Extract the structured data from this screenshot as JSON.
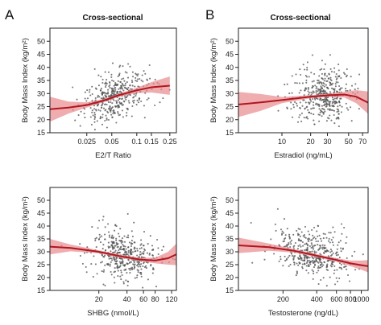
{
  "figure": {
    "panel_a_letter": "A",
    "panel_b_letter": "B",
    "title_a": "Cross-sectional",
    "title_b": "Cross-sectional"
  },
  "colors": {
    "points": "#4d4d4d",
    "fit_line": "#b0161e",
    "ci_band": "#e88a8f",
    "axis": "#222222"
  },
  "chart_data": [
    {
      "id": "e2t",
      "type": "scatter",
      "title": "Cross-sectional",
      "xlabel": "E2/T Ratio",
      "ylabel": "Body Mass Index (kg/m²)",
      "xscale": "log",
      "xlim": [
        0.009,
        0.3
      ],
      "ylim": [
        15,
        55
      ],
      "xticks": [
        0.025,
        0.05,
        0.1,
        0.15,
        0.25
      ],
      "xtick_labels": [
        "0.025",
        "0.05",
        "0.1",
        "0.15",
        "0.25"
      ],
      "yticks": [
        15,
        20,
        25,
        30,
        35,
        40,
        45,
        50
      ],
      "cloud": {
        "x_center": 0.055,
        "x_spread_log10": 0.2,
        "y_spread": 4.2,
        "n": 420
      },
      "fit": {
        "x": [
          0.009,
          0.015,
          0.025,
          0.04,
          0.06,
          0.1,
          0.15,
          0.25
        ],
        "y": [
          24.0,
          24.6,
          25.6,
          27.3,
          29.3,
          31.2,
          32.4,
          33.0
        ],
        "lower": [
          19.2,
          22.3,
          24.6,
          26.7,
          28.7,
          30.2,
          30.4,
          29.5
        ],
        "upper": [
          28.8,
          26.9,
          26.6,
          27.9,
          29.9,
          32.2,
          34.4,
          36.5
        ]
      }
    },
    {
      "id": "estradiol",
      "type": "scatter",
      "title": "Cross-sectional",
      "xlabel": "Estradiol (ng/mL)",
      "ylabel": "Body Mass Index (kg/m²)",
      "xscale": "log",
      "xlim": [
        3.5,
        80
      ],
      "ylim": [
        15,
        55
      ],
      "xticks": [
        10,
        20,
        30,
        50,
        70
      ],
      "xtick_labels": [
        "10",
        "20",
        "30",
        "50",
        "70"
      ],
      "yticks": [
        15,
        20,
        25,
        30,
        35,
        40,
        45,
        50
      ],
      "cloud": {
        "x_center": 26,
        "x_spread_log10": 0.16,
        "y_spread": 4.8,
        "n": 420
      },
      "fit": {
        "x": [
          3.5,
          6,
          10,
          20,
          30,
          45,
          60,
          80
        ],
        "y": [
          25.8,
          26.6,
          27.5,
          28.8,
          29.3,
          29.6,
          28.8,
          26.5
        ],
        "lower": [
          21.0,
          23.4,
          26.3,
          28.2,
          28.7,
          28.5,
          26.3,
          22.2
        ],
        "upper": [
          30.6,
          29.8,
          28.7,
          29.4,
          29.9,
          30.7,
          31.3,
          30.8
        ]
      }
    },
    {
      "id": "shbg",
      "type": "scatter",
      "title": "",
      "xlabel": "SHBG (nmol/L)",
      "ylabel": "Body Mass Index (kg/m²)",
      "xscale": "log",
      "xlim": [
        6,
        135
      ],
      "ylim": [
        15,
        55
      ],
      "xticks": [
        20,
        40,
        60,
        80,
        120
      ],
      "xtick_labels": [
        "20",
        "40",
        "60",
        "80",
        "120"
      ],
      "yticks": [
        15,
        20,
        25,
        30,
        35,
        40,
        45,
        50
      ],
      "cloud": {
        "x_center": 38,
        "x_spread_log10": 0.18,
        "y_spread": 4.2,
        "n": 420
      },
      "fit": {
        "x": [
          6,
          10,
          20,
          35,
          55,
          80,
          110,
          135
        ],
        "y": [
          32.0,
          31.5,
          30.0,
          28.2,
          27.0,
          26.6,
          27.5,
          29.0
        ],
        "lower": [
          29.0,
          30.2,
          29.4,
          27.6,
          26.3,
          25.5,
          25.0,
          24.8
        ],
        "upper": [
          35.0,
          32.8,
          30.6,
          28.8,
          27.7,
          27.7,
          30.0,
          33.2
        ]
      }
    },
    {
      "id": "testosterone",
      "type": "scatter",
      "title": "",
      "xlabel": "Testosterone (ng/dL)",
      "ylabel": "Body Mass Index (kg/m²)",
      "xscale": "log",
      "xlim": [
        80,
        1150
      ],
      "ylim": [
        15,
        55
      ],
      "xticks": [
        200,
        400,
        600,
        800,
        1000
      ],
      "xtick_labels": [
        "200",
        "400",
        "600",
        "800",
        "1000"
      ],
      "yticks": [
        15,
        20,
        25,
        30,
        35,
        40,
        45,
        50
      ],
      "cloud": {
        "x_center": 390,
        "x_spread_log10": 0.17,
        "y_spread": 4.3,
        "n": 420
      },
      "fit": {
        "x": [
          80,
          150,
          250,
          400,
          600,
          800,
          1000,
          1150
        ],
        "y": [
          32.5,
          31.8,
          30.4,
          28.5,
          26.8,
          25.5,
          24.8,
          24.4
        ],
        "lower": [
          29.5,
          30.4,
          29.7,
          27.9,
          26.1,
          24.4,
          23.0,
          22.0
        ],
        "upper": [
          35.5,
          33.2,
          31.1,
          29.1,
          27.5,
          26.6,
          26.6,
          26.8
        ]
      }
    }
  ]
}
